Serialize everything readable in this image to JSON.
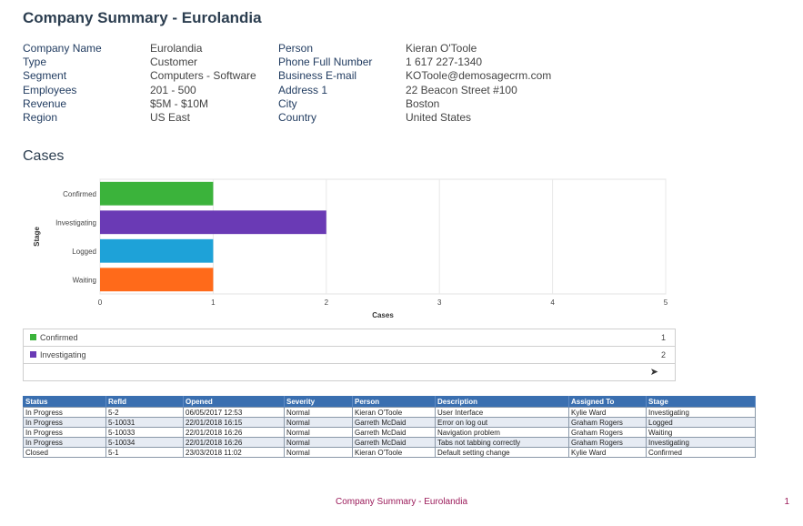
{
  "title": "Company Summary - Eurolandia",
  "details": [
    {
      "label1": "Company Name",
      "value1": "Eurolandia",
      "label2": "Person",
      "value2": "Kieran O'Toole"
    },
    {
      "label1": "Type",
      "value1": "Customer",
      "label2": "Phone Full Number",
      "value2": "1 617 227-1340"
    },
    {
      "label1": "Segment",
      "value1": "Computers - Software",
      "label2": "Business E-mail",
      "value2": "KOToole@demosagecrm.com"
    },
    {
      "label1": "Employees",
      "value1": "201 - 500",
      "label2": "Address 1",
      "value2": "22 Beacon Street #100"
    },
    {
      "label1": "Revenue",
      "value1": "$5M - $10M",
      "label2": "City",
      "value2": "Boston"
    },
    {
      "label1": "Region",
      "value1": "US East",
      "label2": "Country",
      "value2": "United States"
    }
  ],
  "cases_title": "Cases",
  "chart_data": {
    "type": "bar",
    "orientation": "horizontal",
    "categories": [
      "Confirmed",
      "Investigating",
      "Logged",
      "Waiting"
    ],
    "values": [
      1,
      2,
      1,
      1
    ],
    "colors": [
      "#3bb33b",
      "#6a3ab5",
      "#1ea2d8",
      "#ff6a1a"
    ],
    "xlabel": "Cases",
    "ylabel": "Stage",
    "xlim": [
      0,
      5
    ],
    "xticks": [
      "0",
      "1",
      "2",
      "3",
      "4",
      "5"
    ],
    "grid": true
  },
  "legend": [
    {
      "label": "Confirmed",
      "count": "1",
      "color": "#3bb33b"
    },
    {
      "label": "Investigating",
      "count": "2",
      "color": "#6a3ab5"
    }
  ],
  "legend_next": "➤",
  "table": {
    "headers": [
      "Status",
      "RefId",
      "Opened",
      "Severity",
      "Person",
      "Description",
      "Assigned To",
      "Stage"
    ],
    "rows": [
      [
        "In Progress",
        "5-2",
        "06/05/2017 12:53",
        "Normal",
        "Kieran O'Toole",
        "User Interface",
        "Kylie Ward",
        "Investigating"
      ],
      [
        "In Progress",
        "5-10031",
        "22/01/2018 16:15",
        "Normal",
        "Garreth McDaid",
        "Error on log out",
        "Graham Rogers",
        "Logged"
      ],
      [
        "In Progress",
        "5-10033",
        "22/01/2018 16:26",
        "Normal",
        "Garreth McDaid",
        "Navigation problem",
        "Graham Rogers",
        "Waiting"
      ],
      [
        "In Progress",
        "5-10034",
        "22/01/2018 16:26",
        "Normal",
        "Garreth McDaid",
        "Tabs not tabbing correctly",
        "Graham Rogers",
        "Investigating"
      ],
      [
        "Closed",
        "5-1",
        "23/03/2018 11:02",
        "Normal",
        "Kieran O'Toole",
        "Default setting change",
        "Kylie Ward",
        "Confirmed"
      ]
    ]
  },
  "footer": "Company Summary - Eurolandia",
  "page_number": "1"
}
